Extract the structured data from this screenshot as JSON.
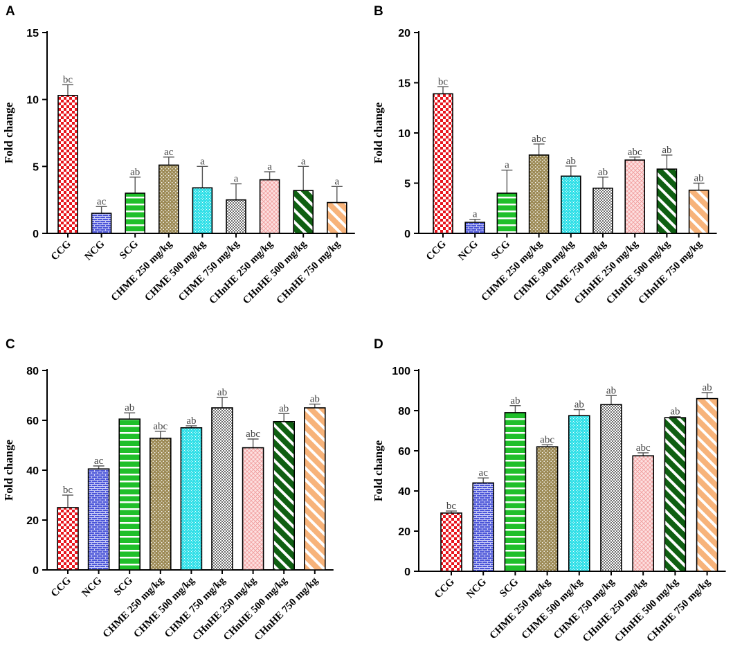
{
  "colors": {
    "CCG": "#e8141c",
    "NCG": "#4a54d8",
    "SCG": "#1fbf2a",
    "CHME 250 mg/kg": "#9c8a55",
    "CHME 500 mg/kg": "#33e0e8",
    "CHME 750 mg/kg": "#9a9a9a",
    "CHnHE 250 mg/kg": "#f6b7b7",
    "CHnHE 500 mg/kg": "#0f5f12",
    "CHnHE 750 mg/kg": "#f7b37a"
  },
  "chart_data": [
    {
      "panel": "A",
      "type": "bar",
      "ylabel": "Fold change",
      "ylim": [
        0,
        15
      ],
      "yticks": [
        "0",
        "5",
        "10",
        "15"
      ],
      "categories": [
        "CCG",
        "NCG",
        "SCG",
        "CHME 250 mg/kg",
        "CHME 500 mg/kg",
        "CHME 750 mg/kg",
        "CHnHE 250 mg/kg",
        "CHnHE 500 mg/kg",
        "CHnHE 750 mg/kg"
      ],
      "values": [
        10.3,
        1.5,
        3.0,
        5.1,
        3.4,
        2.5,
        4.0,
        3.2,
        2.3
      ],
      "errors": [
        0.8,
        0.5,
        1.2,
        0.6,
        1.6,
        1.2,
        0.6,
        1.8,
        1.2
      ],
      "labels": [
        "bc",
        "ac",
        "ab",
        "ac",
        "a",
        "a",
        "a",
        "a",
        "a"
      ]
    },
    {
      "panel": "B",
      "type": "bar",
      "ylabel": "Fold change",
      "ylim": [
        0,
        20
      ],
      "yticks": [
        "0",
        "5",
        "10",
        "15",
        "20"
      ],
      "categories": [
        "CCG",
        "NCG",
        "SCG",
        "CHME 250 mg/kg",
        "CHME 500 mg/kg",
        "CHME 750 mg/kg",
        "CHnHE 250 mg/kg",
        "CHnHE 500 mg/kg",
        "CHnHE 750 mg/kg"
      ],
      "values": [
        13.9,
        1.1,
        4.0,
        7.8,
        5.7,
        4.5,
        7.3,
        6.4,
        4.3
      ],
      "errors": [
        0.7,
        0.3,
        2.3,
        1.1,
        1.0,
        1.1,
        0.3,
        1.4,
        0.7
      ],
      "labels": [
        "bc",
        "a",
        "a",
        "abc",
        "ab",
        "ab",
        "abc",
        "ab",
        "ab"
      ]
    },
    {
      "panel": "C",
      "type": "bar",
      "ylabel": "Fold change",
      "ylim": [
        0,
        80
      ],
      "yticks": [
        "0",
        "20",
        "40",
        "60",
        "80"
      ],
      "categories": [
        "CCG",
        "NCG",
        "SCG",
        "CHME 250 mg/kg",
        "CHME 500 mg/kg",
        "CHME 750 mg/kg",
        "CHnHE 250 mg/kg",
        "CHnHE 500 mg/kg",
        "CHnHE 750 mg/kg"
      ],
      "values": [
        25,
        40.5,
        60.5,
        52.8,
        57,
        65,
        49,
        59.5,
        65
      ],
      "errors": [
        5,
        1.2,
        2.5,
        2.8,
        0.8,
        4.2,
        3.5,
        3.2,
        1.5
      ],
      "labels": [
        "bc",
        "ac",
        "ab",
        "abc",
        "ab",
        "ab",
        "abc",
        "ab",
        "ab"
      ]
    },
    {
      "panel": "D",
      "type": "bar",
      "ylabel": "Fold change",
      "ylim": [
        0,
        100
      ],
      "yticks": [
        "0",
        "20",
        "40",
        "60",
        "80",
        "100"
      ],
      "categories": [
        "CCG",
        "NCG",
        "SCG",
        "CHME 250 mg/kg",
        "CHME 500 mg/kg",
        "CHME 750 mg/kg",
        "CHnHE 250 mg/kg",
        "CHnHE 500 mg/kg",
        "CHnHE 750 mg/kg"
      ],
      "values": [
        29,
        44,
        79,
        62,
        77.5,
        83,
        57.5,
        76.5,
        86
      ],
      "errors": [
        1,
        2.5,
        3.5,
        1,
        3,
        4.5,
        1.5,
        0.5,
        3
      ],
      "labels": [
        "bc",
        "ac",
        "ab",
        "abc",
        "ab",
        "ab",
        "abc",
        "ab",
        "ab"
      ]
    }
  ]
}
